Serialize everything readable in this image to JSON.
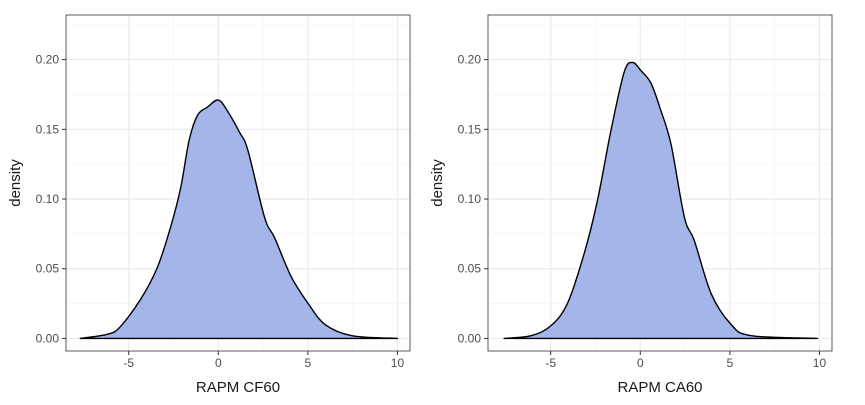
{
  "chart_data": [
    {
      "type": "area",
      "subtype": "density",
      "xlabel": "RAPM CF60",
      "ylabel": "density",
      "xlim": [
        -8.5,
        10.7
      ],
      "ylim": [
        -0.009,
        0.232
      ],
      "xticks": [
        -5,
        0,
        5,
        10
      ],
      "xtick_labels": [
        "-5",
        "0",
        "5",
        "10"
      ],
      "yticks": [
        0,
        0.05,
        0.1,
        0.15,
        0.2
      ],
      "ytick_labels": [
        "0.00",
        "0.05",
        "0.10",
        "0.15",
        "0.20"
      ],
      "grid": true,
      "fill_color": "#a4b5ea",
      "line_color": "#000000",
      "x": [
        -7.7,
        -6.2,
        -5.5,
        -4.34,
        -3.4,
        -2.66,
        -2.1,
        -1.63,
        -1.16,
        -0.6,
        0,
        0.52,
        1.18,
        1.65,
        2.58,
        3.15,
        4.08,
        5.02,
        5.96,
        7.45,
        10
      ],
      "y": [
        0,
        0.003,
        0.008,
        0.028,
        0.051,
        0.08,
        0.108,
        0.142,
        0.16,
        0.166,
        0.171,
        0.163,
        0.148,
        0.135,
        0.087,
        0.072,
        0.044,
        0.025,
        0.01,
        0.002,
        0
      ]
    },
    {
      "type": "area",
      "subtype": "density",
      "xlabel": "RAPM CA60",
      "ylabel": "density",
      "xlim": [
        -8.5,
        10.7
      ],
      "ylim": [
        -0.009,
        0.232
      ],
      "xticks": [
        -5,
        0,
        5,
        10
      ],
      "xtick_labels": [
        "-5",
        "0",
        "5",
        "10"
      ],
      "yticks": [
        0,
        0.05,
        0.1,
        0.15,
        0.2
      ],
      "ytick_labels": [
        "0.00",
        "0.05",
        "0.10",
        "0.15",
        "0.20"
      ],
      "grid": true,
      "fill_color": "#a4b5ea",
      "line_color": "#000000",
      "x": [
        -7.6,
        -6.1,
        -5,
        -4.07,
        -3.13,
        -2.39,
        -1.64,
        -0.9,
        -0.43,
        0.04,
        0.6,
        1.16,
        1.72,
        2.46,
        3.02,
        3.96,
        5.07,
        6.19,
        9.9
      ],
      "y": [
        0,
        0.002,
        0.009,
        0.025,
        0.061,
        0.099,
        0.149,
        0.191,
        0.198,
        0.192,
        0.183,
        0.163,
        0.139,
        0.087,
        0.07,
        0.032,
        0.01,
        0.002,
        0
      ]
    }
  ]
}
